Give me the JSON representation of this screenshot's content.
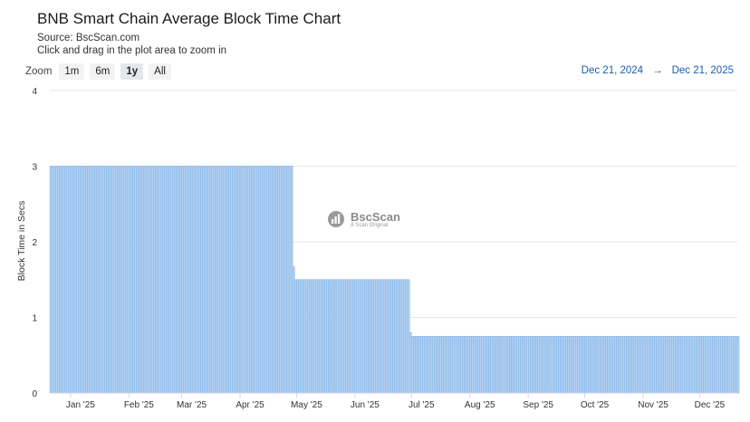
{
  "header": {
    "title": "BNB Smart Chain Average Block Time Chart",
    "source": "Source: BscScan.com",
    "hint": "Click and drag in the plot area to zoom in"
  },
  "zoom": {
    "label": "Zoom",
    "buttons": [
      "1m",
      "6m",
      "1y",
      "All"
    ],
    "active": "1y"
  },
  "range": {
    "from": "Dec 21, 2024",
    "arrow": "→",
    "to": "Dec 21, 2025"
  },
  "watermark": {
    "name": "BscScan",
    "tagline": "A Scan Original"
  },
  "chart_data": {
    "type": "bar",
    "ylabel": "Block Time in Secs",
    "ylim": [
      0,
      4
    ],
    "yticks": [
      0,
      1,
      2,
      3,
      4
    ],
    "xlim": [
      "2024-12-21",
      "2025-12-21"
    ],
    "xticks": [
      {
        "date": "2025-01-01",
        "label": "Jan '25"
      },
      {
        "date": "2025-02-01",
        "label": "Feb '25"
      },
      {
        "date": "2025-03-01",
        "label": "Mar '25"
      },
      {
        "date": "2025-04-01",
        "label": "Apr '25"
      },
      {
        "date": "2025-05-01",
        "label": "May '25"
      },
      {
        "date": "2025-06-01",
        "label": "Jun '25"
      },
      {
        "date": "2025-07-01",
        "label": "Jul '25"
      },
      {
        "date": "2025-08-01",
        "label": "Aug '25"
      },
      {
        "date": "2025-09-01",
        "label": "Sep '25"
      },
      {
        "date": "2025-10-01",
        "label": "Oct '25"
      },
      {
        "date": "2025-11-01",
        "label": "Nov '25"
      },
      {
        "date": "2025-12-01",
        "label": "Dec '25"
      }
    ],
    "segments": [
      {
        "from": "2024-12-21",
        "to": "2025-04-28",
        "value": 3.0
      },
      {
        "from": "2025-04-29",
        "to": "2025-04-29",
        "value": 1.67
      },
      {
        "from": "2025-04-30",
        "to": "2025-06-29",
        "value": 1.5
      },
      {
        "from": "2025-06-30",
        "to": "2025-06-30",
        "value": 0.8
      },
      {
        "from": "2025-07-01",
        "to": "2025-12-21",
        "value": 0.75
      }
    ],
    "grid": true,
    "legend": "none",
    "bar_color": "#b7d3f2",
    "bar_edge_color": "#5c9ee0"
  }
}
